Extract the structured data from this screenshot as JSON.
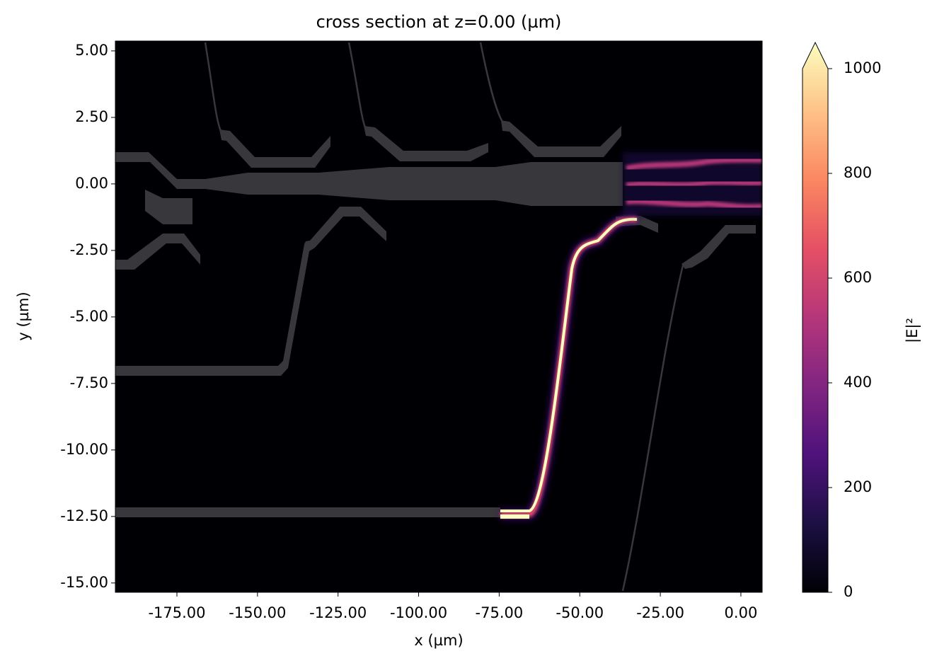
{
  "chart_data": {
    "type": "heatmap",
    "title": "cross section at z=0.00 (µm)",
    "xlabel": "x (µm)",
    "ylabel": "y (µm)",
    "xlim": [
      -194.1,
      6.6
    ],
    "ylim": [
      -15.35,
      5.37
    ],
    "xticks": [
      {
        "value": -175,
        "label": "-175.00"
      },
      {
        "value": -150,
        "label": "-150.00"
      },
      {
        "value": -125,
        "label": "-125.00"
      },
      {
        "value": -100,
        "label": "-100.00"
      },
      {
        "value": -75,
        "label": "-75.00"
      },
      {
        "value": -50,
        "label": "-50.00"
      },
      {
        "value": -25,
        "label": "-25.00"
      },
      {
        "value": 0,
        "label": "0.00"
      }
    ],
    "yticks": [
      {
        "value": 5,
        "label": "5.00"
      },
      {
        "value": 2.5,
        "label": "2.50"
      },
      {
        "value": 0,
        "label": "0.00"
      },
      {
        "value": -2.5,
        "label": "-2.50"
      },
      {
        "value": -5,
        "label": "-5.00"
      },
      {
        "value": -7.5,
        "label": "-7.50"
      },
      {
        "value": -10,
        "label": "-10.00"
      },
      {
        "value": -12.5,
        "label": "-12.50"
      },
      {
        "value": -15,
        "label": "-15.00"
      }
    ],
    "colorbar": {
      "label": "|E|²",
      "lim": [
        0,
        1000
      ],
      "ticks": [
        0,
        200,
        400,
        600,
        800,
        1000
      ],
      "extend": "max",
      "colormap": "magma"
    }
  }
}
